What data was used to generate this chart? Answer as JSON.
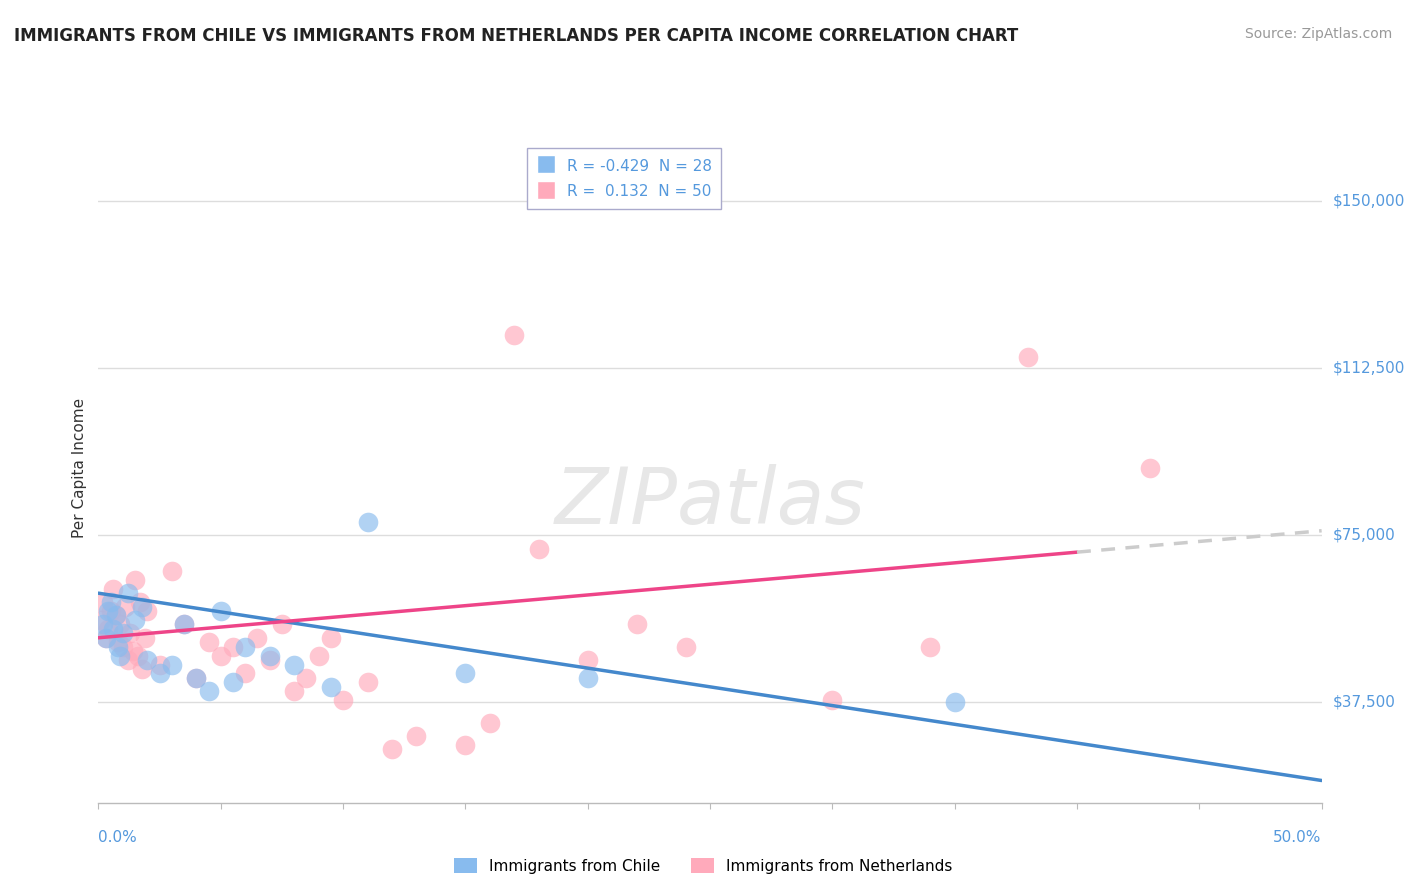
{
  "title": "IMMIGRANTS FROM CHILE VS IMMIGRANTS FROM NETHERLANDS PER CAPITA INCOME CORRELATION CHART",
  "source": "Source: ZipAtlas.com",
  "ylabel": "Per Capita Income",
  "xmin": 0.0,
  "xmax": 0.5,
  "ymin": 15000,
  "ymax": 165000,
  "yticks": [
    37500,
    75000,
    112500,
    150000
  ],
  "ytick_labels": [
    "$37,500",
    "$75,000",
    "$112,500",
    "$150,000"
  ],
  "background_color": "#ffffff",
  "grid_color": "#dddddd",
  "chile": {
    "name": "Immigrants from Chile",
    "color": "#88bbee",
    "R": -0.429,
    "N": 28,
    "points_x": [
      0.002,
      0.003,
      0.004,
      0.005,
      0.006,
      0.007,
      0.008,
      0.009,
      0.01,
      0.012,
      0.015,
      0.018,
      0.02,
      0.025,
      0.03,
      0.035,
      0.04,
      0.045,
      0.05,
      0.055,
      0.06,
      0.07,
      0.08,
      0.095,
      0.11,
      0.15,
      0.2,
      0.35
    ],
    "points_y": [
      55000,
      52000,
      58000,
      60000,
      54000,
      57000,
      50000,
      48000,
      53000,
      62000,
      56000,
      59000,
      47000,
      44000,
      46000,
      55000,
      43000,
      40000,
      58000,
      42000,
      50000,
      48000,
      46000,
      41000,
      78000,
      44000,
      43000,
      37500
    ],
    "line_color": "#4488cc",
    "line_x0": 0.0,
    "line_x1": 0.5,
    "line_y0": 62000,
    "line_y1": 20000
  },
  "netherlands": {
    "name": "Immigrants from Netherlands",
    "color": "#ffaabb",
    "R": 0.132,
    "N": 50,
    "points_x": [
      0.001,
      0.002,
      0.003,
      0.004,
      0.005,
      0.006,
      0.007,
      0.008,
      0.009,
      0.01,
      0.011,
      0.012,
      0.013,
      0.014,
      0.015,
      0.016,
      0.017,
      0.018,
      0.019,
      0.02,
      0.025,
      0.03,
      0.035,
      0.04,
      0.045,
      0.05,
      0.055,
      0.06,
      0.065,
      0.07,
      0.075,
      0.08,
      0.085,
      0.09,
      0.095,
      0.1,
      0.11,
      0.12,
      0.13,
      0.15,
      0.16,
      0.17,
      0.18,
      0.2,
      0.22,
      0.24,
      0.3,
      0.34,
      0.38,
      0.43
    ],
    "points_y": [
      56000,
      60000,
      52000,
      54000,
      58000,
      63000,
      57000,
      51000,
      55000,
      50000,
      59000,
      47000,
      53000,
      49000,
      65000,
      48000,
      60000,
      45000,
      52000,
      58000,
      46000,
      67000,
      55000,
      43000,
      51000,
      48000,
      50000,
      44000,
      52000,
      47000,
      55000,
      40000,
      43000,
      48000,
      52000,
      38000,
      42000,
      27000,
      30000,
      28000,
      33000,
      120000,
      72000,
      47000,
      55000,
      50000,
      38000,
      50000,
      115000,
      90000
    ],
    "line_color": "#ee4488",
    "line_x0": 0.0,
    "line_x1": 0.5,
    "line_y0": 52000,
    "line_y1": 76000
  },
  "title_fontsize": 12,
  "axis_label_fontsize": 11,
  "tick_fontsize": 11,
  "legend_fontsize": 11,
  "source_fontsize": 10
}
